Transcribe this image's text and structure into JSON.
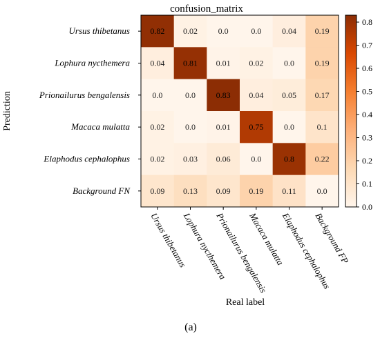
{
  "chart_data": {
    "type": "heatmap",
    "title": "confusion_matrix",
    "xlabel": "Real label",
    "ylabel": "Prediction",
    "x_categories": [
      "Ursus thibetanus",
      "Lophura nycthemera",
      "Prionailurus bengalensis",
      "Macaca mulatta",
      "Elaphodus cephalophus",
      "Background FP"
    ],
    "y_categories": [
      "Ursus thibetanus",
      "Lophura nycthemera",
      "Prionailurus bengalensis",
      "Macaca mulatta",
      "Elaphodus cephalophus",
      "Background FN"
    ],
    "values": [
      [
        0.82,
        0.02,
        0.0,
        0.0,
        0.04,
        0.19
      ],
      [
        0.04,
        0.81,
        0.01,
        0.02,
        0.0,
        0.19
      ],
      [
        0.0,
        0.0,
        0.83,
        0.04,
        0.05,
        0.17
      ],
      [
        0.02,
        0.0,
        0.01,
        0.75,
        0.0,
        0.1
      ],
      [
        0.02,
        0.03,
        0.06,
        0.0,
        0.8,
        0.22
      ],
      [
        0.09,
        0.13,
        0.09,
        0.19,
        0.11,
        0.0
      ]
    ],
    "value_labels": [
      [
        "0.82",
        "0.02",
        "0.0",
        "0.0",
        "0.04",
        "0.19"
      ],
      [
        "0.04",
        "0.81",
        "0.01",
        "0.02",
        "0.0",
        "0.19"
      ],
      [
        "0.0",
        "0.0",
        "0.83",
        "0.04",
        "0.05",
        "0.17"
      ],
      [
        "0.02",
        "0.0",
        "0.01",
        "0.75",
        "0.0",
        "0.1"
      ],
      [
        "0.02",
        "0.03",
        "0.06",
        "0.0",
        "0.8",
        "0.22"
      ],
      [
        "0.09",
        "0.13",
        "0.09",
        "0.19",
        "0.11",
        "0.0"
      ]
    ],
    "colorbar": {
      "range": [
        0,
        0.83
      ],
      "ticks": [
        0.0,
        0.1,
        0.2,
        0.3,
        0.4,
        0.5,
        0.6,
        0.7,
        0.8
      ],
      "tick_labels": [
        "0.0",
        "0.1",
        "0.2",
        "0.3",
        "0.4",
        "0.5",
        "0.6",
        "0.7",
        "0.8"
      ],
      "colormap": "Oranges"
    }
  },
  "caption": "(a)"
}
